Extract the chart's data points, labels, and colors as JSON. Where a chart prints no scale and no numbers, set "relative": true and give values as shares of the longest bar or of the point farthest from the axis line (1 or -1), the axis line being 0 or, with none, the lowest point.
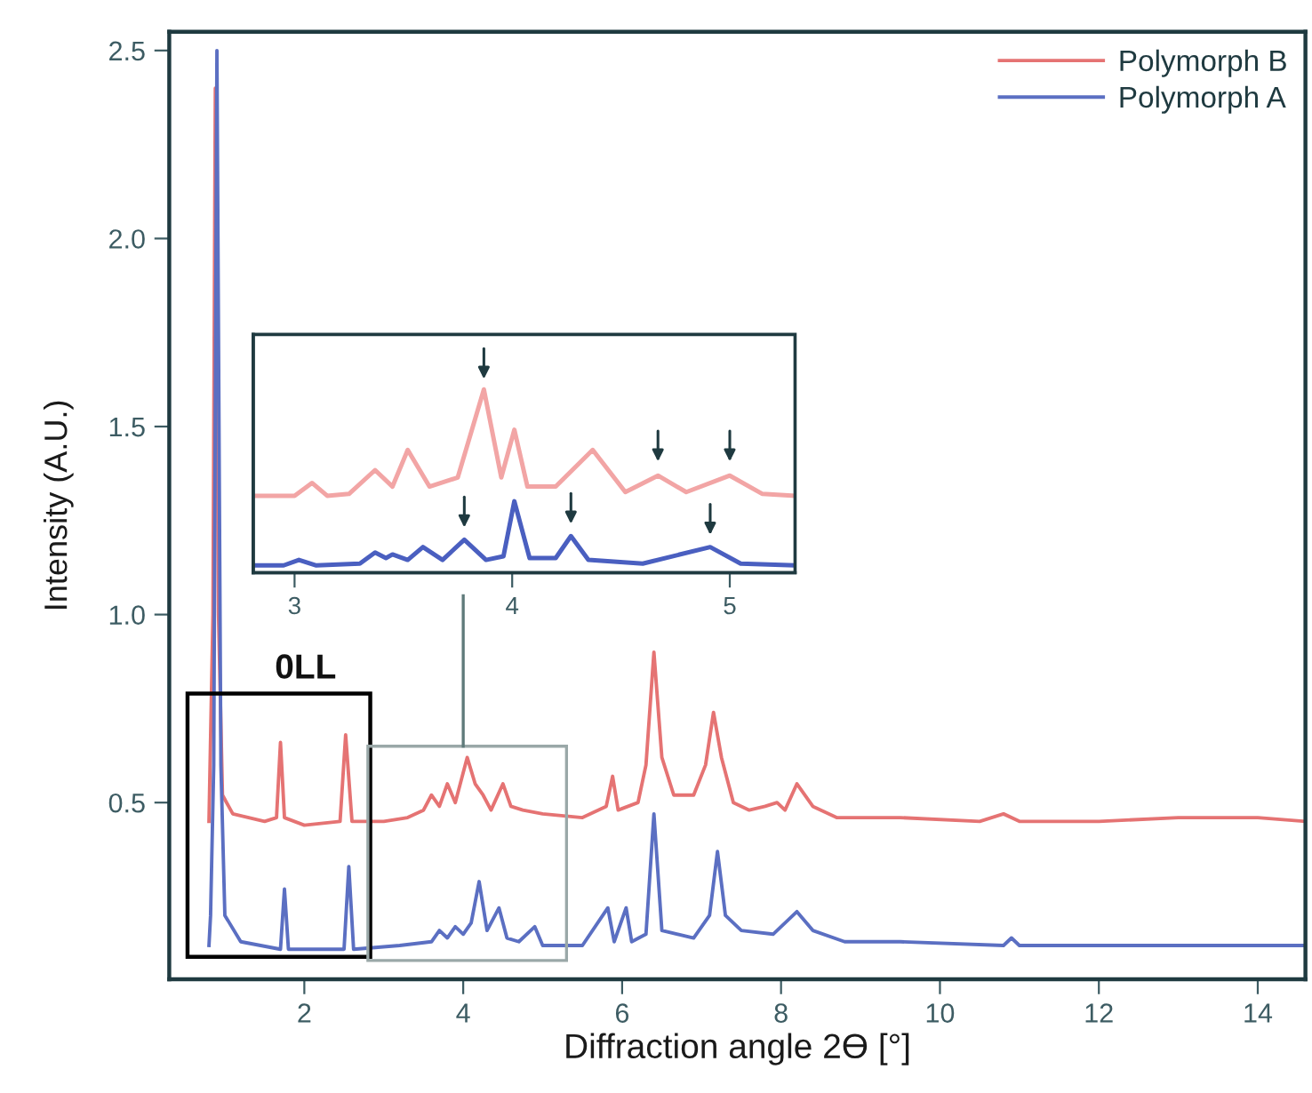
{
  "chart_data": [
    {
      "type": "line",
      "xlabel": "Diffraction angle 2ϴ [°]",
      "ylabel": "Intensity (A.U.)",
      "xlim": [
        0.3,
        14.6
      ],
      "ylim": [
        0.03,
        2.55
      ],
      "xticks": [
        2,
        4,
        6,
        8,
        10,
        12,
        14
      ],
      "yticks": [
        0.5,
        {
          "value": 1,
          "label": "1.0"
        },
        1.5,
        {
          "value": 2,
          "label": "2.0"
        },
        2.5
      ],
      "grid": false,
      "legend": "top right",
      "marker": "none",
      "line_style": "solid",
      "annotations": [
        "0LL"
      ],
      "series": [
        {
          "name": "Polymorph B",
          "color": "#e57373",
          "x": [
            0.8,
            0.85,
            0.88,
            0.92,
            0.97,
            1.1,
            1.5,
            1.65,
            1.7,
            1.75,
            2.0,
            2.45,
            2.52,
            2.6,
            3.0,
            3.3,
            3.5,
            3.6,
            3.7,
            3.8,
            3.9,
            4.05,
            4.15,
            4.25,
            4.35,
            4.5,
            4.6,
            4.75,
            5.0,
            5.5,
            5.8,
            5.88,
            5.95,
            6.2,
            6.3,
            6.4,
            6.5,
            6.65,
            6.9,
            7.05,
            7.15,
            7.25,
            7.4,
            7.6,
            7.8,
            7.95,
            8.05,
            8.2,
            8.4,
            8.7,
            9.5,
            10.5,
            10.8,
            11.0,
            12.0,
            13.0,
            14.0,
            14.6
          ],
          "values": [
            0.45,
            1.0,
            2.4,
            1.0,
            0.52,
            0.47,
            0.45,
            0.46,
            0.66,
            0.46,
            0.44,
            0.45,
            0.68,
            0.45,
            0.45,
            0.46,
            0.48,
            0.52,
            0.49,
            0.55,
            0.5,
            0.62,
            0.55,
            0.52,
            0.48,
            0.55,
            0.49,
            0.48,
            0.47,
            0.46,
            0.49,
            0.57,
            0.48,
            0.5,
            0.6,
            0.9,
            0.62,
            0.52,
            0.52,
            0.6,
            0.74,
            0.62,
            0.5,
            0.48,
            0.49,
            0.5,
            0.48,
            0.55,
            0.49,
            0.46,
            0.46,
            0.45,
            0.47,
            0.45,
            0.45,
            0.46,
            0.46,
            0.45
          ]
        },
        {
          "name": "Polymorph A",
          "color": "#5b6fc2",
          "x": [
            0.8,
            0.82,
            0.86,
            0.9,
            0.95,
            1.0,
            1.2,
            1.7,
            1.75,
            1.8,
            2.5,
            2.56,
            2.62,
            3.2,
            3.6,
            3.7,
            3.8,
            3.9,
            4.0,
            4.1,
            4.2,
            4.3,
            4.45,
            4.55,
            4.7,
            4.9,
            5.0,
            5.5,
            5.82,
            5.9,
            6.05,
            6.12,
            6.3,
            6.4,
            6.5,
            6.9,
            7.1,
            7.2,
            7.3,
            7.5,
            7.9,
            8.2,
            8.4,
            8.8,
            9.5,
            10.8,
            10.9,
            11.0,
            12.0,
            14.6
          ],
          "values": [
            0.12,
            0.2,
            0.6,
            2.5,
            0.6,
            0.2,
            0.13,
            0.11,
            0.27,
            0.11,
            0.11,
            0.33,
            0.11,
            0.12,
            0.13,
            0.16,
            0.14,
            0.17,
            0.15,
            0.18,
            0.29,
            0.16,
            0.22,
            0.14,
            0.13,
            0.17,
            0.12,
            0.12,
            0.22,
            0.13,
            0.22,
            0.13,
            0.15,
            0.47,
            0.16,
            0.14,
            0.2,
            0.37,
            0.2,
            0.16,
            0.15,
            0.21,
            0.16,
            0.13,
            0.13,
            0.12,
            0.14,
            0.12,
            0.12,
            0.12
          ]
        }
      ]
    },
    {
      "type": "line",
      "relative": true,
      "xlim": [
        2.81,
        5.3
      ],
      "xticks": [
        3,
        4,
        5
      ],
      "tick_labels": "x",
      "grid": false,
      "legend": false,
      "marker": "none",
      "line_style": "solid",
      "series": [
        {
          "color": "#f2a5a5",
          "x": [
            2.81,
            3.0,
            3.08,
            3.15,
            3.25,
            3.37,
            3.45,
            3.52,
            3.62,
            3.75,
            3.87,
            3.95,
            4.01,
            4.07,
            4.2,
            4.37,
            4.52,
            4.67,
            4.8,
            5.0,
            5.15,
            5.3
          ],
          "values": [
            0.42,
            0.42,
            0.49,
            0.42,
            0.43,
            0.56,
            0.47,
            0.67,
            0.47,
            0.52,
            1.0,
            0.52,
            0.78,
            0.47,
            0.47,
            0.67,
            0.44,
            0.53,
            0.44,
            0.53,
            0.43,
            0.42
          ]
        },
        {
          "color": "#4a5fc0",
          "x": [
            2.81,
            2.95,
            3.02,
            3.1,
            3.3,
            3.37,
            3.42,
            3.45,
            3.52,
            3.59,
            3.68,
            3.78,
            3.88,
            3.96,
            4.01,
            4.08,
            4.2,
            4.27,
            4.35,
            4.6,
            4.91,
            5.05,
            5.3
          ],
          "values": [
            0.04,
            0.04,
            0.07,
            0.04,
            0.05,
            0.11,
            0.08,
            0.1,
            0.07,
            0.14,
            0.07,
            0.18,
            0.07,
            0.09,
            0.39,
            0.08,
            0.08,
            0.2,
            0.07,
            0.05,
            0.14,
            0.05,
            0.04
          ]
        }
      ]
    }
  ]
}
